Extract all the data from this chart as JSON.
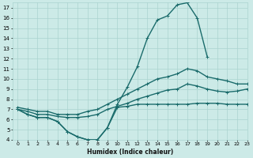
{
  "xlabel": "Humidex (Indice chaleur)",
  "ylabel": "",
  "background_color": "#cceae7",
  "grid_color": "#aad4d0",
  "line_color": "#1a6b6b",
  "xlim": [
    -0.5,
    23
  ],
  "ylim": [
    4,
    17.5
  ],
  "xticks": [
    0,
    1,
    2,
    3,
    4,
    5,
    6,
    7,
    8,
    9,
    10,
    11,
    12,
    13,
    14,
    15,
    16,
    17,
    18,
    19,
    20,
    21,
    22,
    23
  ],
  "yticks": [
    4,
    5,
    6,
    7,
    8,
    9,
    10,
    11,
    12,
    13,
    14,
    15,
    16,
    17
  ],
  "series": [
    {
      "x": [
        0,
        1,
        2,
        3,
        4,
        5,
        6,
        7,
        8,
        9,
        10,
        11,
        12,
        13,
        14,
        15,
        16,
        17,
        18,
        19,
        20,
        21,
        22,
        23
      ],
      "y": [
        7.0,
        6.5,
        6.2,
        6.2,
        5.8,
        4.8,
        4.3,
        4.0,
        4.0,
        5.2,
        7.2,
        7.3,
        7.5,
        7.5,
        7.5,
        7.5,
        7.5,
        7.5,
        7.6,
        7.6,
        7.6,
        7.5,
        7.5,
        7.5
      ]
    },
    {
      "x": [
        0,
        1,
        2,
        3,
        4,
        5,
        6,
        7,
        8,
        9,
        10,
        11,
        12,
        13,
        14,
        15,
        16,
        17,
        18,
        19,
        20,
        21,
        22,
        23
      ],
      "y": [
        7.0,
        6.5,
        6.2,
        6.2,
        5.8,
        4.8,
        4.3,
        4.0,
        4.0,
        5.2,
        7.5,
        9.2,
        11.2,
        14.0,
        15.8,
        16.2,
        17.3,
        17.5,
        16.0,
        12.2,
        null,
        null,
        null,
        null
      ]
    },
    {
      "x": [
        0,
        1,
        2,
        3,
        4,
        5,
        6,
        7,
        8,
        9,
        10,
        11,
        12,
        13,
        14,
        15,
        16,
        17,
        18,
        19,
        20,
        21,
        22,
        23
      ],
      "y": [
        7.2,
        7.0,
        6.8,
        6.8,
        6.5,
        6.5,
        6.5,
        6.8,
        7.0,
        7.5,
        8.0,
        8.5,
        9.0,
        9.5,
        10.0,
        10.2,
        10.5,
        11.0,
        10.8,
        10.2,
        10.0,
        9.8,
        9.5,
        9.5
      ]
    },
    {
      "x": [
        0,
        1,
        2,
        3,
        4,
        5,
        6,
        7,
        8,
        9,
        10,
        11,
        12,
        13,
        14,
        15,
        16,
        17,
        18,
        19,
        20,
        21,
        22,
        23
      ],
      "y": [
        7.0,
        6.8,
        6.5,
        6.5,
        6.3,
        6.2,
        6.2,
        6.3,
        6.5,
        7.0,
        7.3,
        7.6,
        8.0,
        8.3,
        8.6,
        8.9,
        9.0,
        9.5,
        9.3,
        9.0,
        8.8,
        8.7,
        8.8,
        9.0
      ]
    }
  ]
}
